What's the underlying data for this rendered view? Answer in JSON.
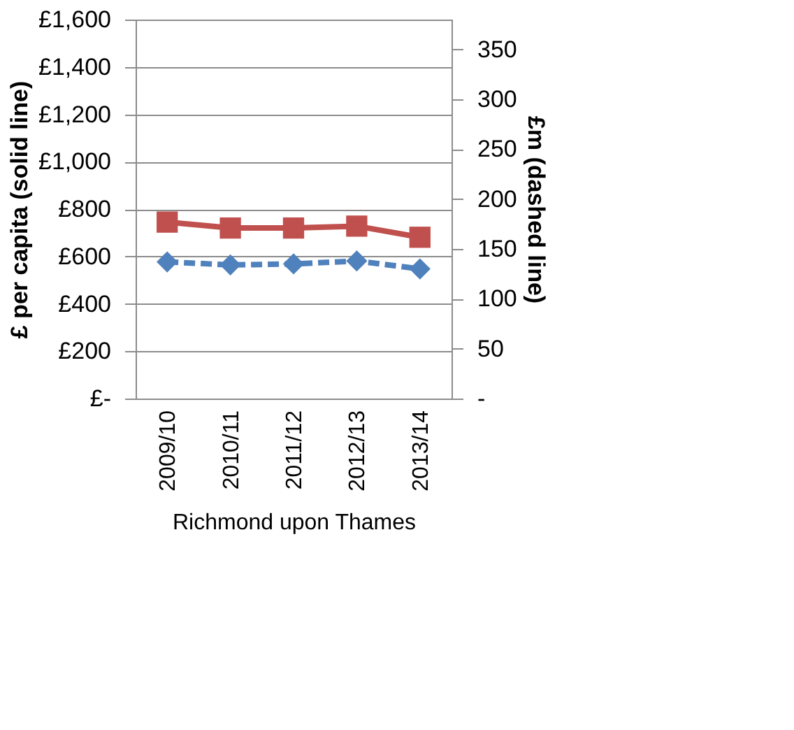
{
  "chart_data": {
    "type": "line",
    "categories": [
      "2009/10",
      "2010/11",
      "2011/12",
      "2012/13",
      "2013/14"
    ],
    "xlabel": "Richmond upon Thames",
    "ylabel": "£ per capita (solid line)",
    "y2label": "£m (dashed line)",
    "series": [
      {
        "color": "#c0504d",
        "values": [
          745,
          720,
          720,
          728,
          681
        ],
        "marker": "square",
        "line_style": "solid"
      },
      {
        "color": "#4f81bd",
        "values": [
          137,
          134,
          135,
          138,
          130
        ],
        "marker": "diamond",
        "line_style": "dashed",
        "axis": "y2"
      }
    ],
    "ylim": [
      0,
      1600
    ],
    "yticks": [
      {
        "value": 0,
        "label": "£-"
      },
      {
        "value": 200,
        "label": "£200"
      },
      {
        "value": 400,
        "label": "£400"
      },
      {
        "value": 600,
        "label": "£600"
      },
      {
        "value": 800,
        "label": "£800"
      },
      {
        "value": 1000,
        "label": "£1,000"
      },
      {
        "value": 1200,
        "label": "£1,200"
      },
      {
        "value": 1400,
        "label": "£1,400"
      },
      {
        "value": 1600,
        "label": "£1,600"
      }
    ],
    "y2lim": [
      0,
      380
    ],
    "y2ticks": [
      {
        "value": 0,
        "label": "-"
      },
      50,
      100,
      150,
      200,
      250,
      300,
      350
    ],
    "grid": "y"
  }
}
